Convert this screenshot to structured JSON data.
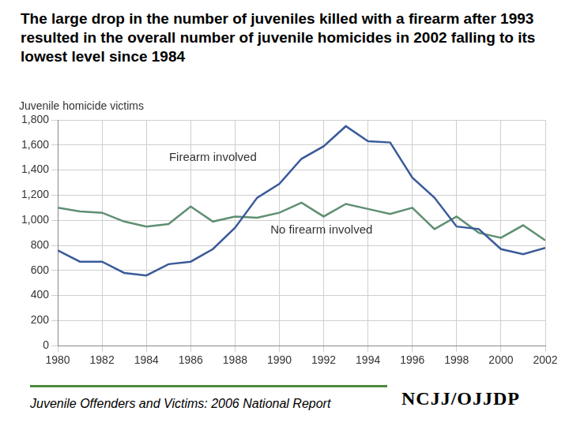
{
  "chart_data": {
    "type": "line",
    "title": "The large drop in the number of juveniles killed with a firearm after 1993 resulted in the overall number of juvenile homicides in 2002 falling to its lowest level since 1984",
    "y_label": "Juvenile homicide victims",
    "source": "Juvenile Offenders and Victims: 2006 National Report",
    "logo": "NCJJ/OJJDP",
    "x": [
      1980,
      1981,
      1982,
      1983,
      1984,
      1985,
      1986,
      1987,
      1988,
      1989,
      1990,
      1991,
      1992,
      1993,
      1994,
      1995,
      1996,
      1997,
      1998,
      1999,
      2000,
      2001,
      2002
    ],
    "series": [
      {
        "name": "Firearm involved",
        "color": "#3a5a9a",
        "values": [
          760,
          670,
          670,
          580,
          560,
          650,
          670,
          770,
          940,
          1180,
          1290,
          1490,
          1590,
          1750,
          1630,
          1620,
          1340,
          1180,
          950,
          930,
          770,
          730,
          780
        ]
      },
      {
        "name": "No firearm involved",
        "color": "#5f8f72",
        "values": [
          1100,
          1070,
          1060,
          990,
          950,
          970,
          1110,
          990,
          1030,
          1020,
          1060,
          1140,
          1030,
          1130,
          1090,
          1050,
          1100,
          930,
          1030,
          900,
          860,
          960,
          840
        ]
      }
    ],
    "annotations": [
      {
        "text": "Firearm involved",
        "x": 1987,
        "y": 1500
      },
      {
        "text": "No firearm involved",
        "x": 1991.9,
        "y": 920
      }
    ],
    "xlim": [
      1980,
      2002
    ],
    "xticks": [
      1980,
      1982,
      1984,
      1986,
      1988,
      1990,
      1992,
      1994,
      1996,
      1998,
      2000,
      2002
    ],
    "ylim": [
      0,
      1800
    ],
    "yticks": [
      0,
      200,
      400,
      600,
      800,
      {
        "value": 1000,
        "label": "1,000"
      },
      {
        "value": 1200,
        "label": "1,200"
      },
      {
        "value": 1400,
        "label": "1,400"
      },
      {
        "value": 1600,
        "label": "1,600"
      },
      {
        "value": 1800,
        "label": "1,800"
      }
    ],
    "grid": true
  }
}
